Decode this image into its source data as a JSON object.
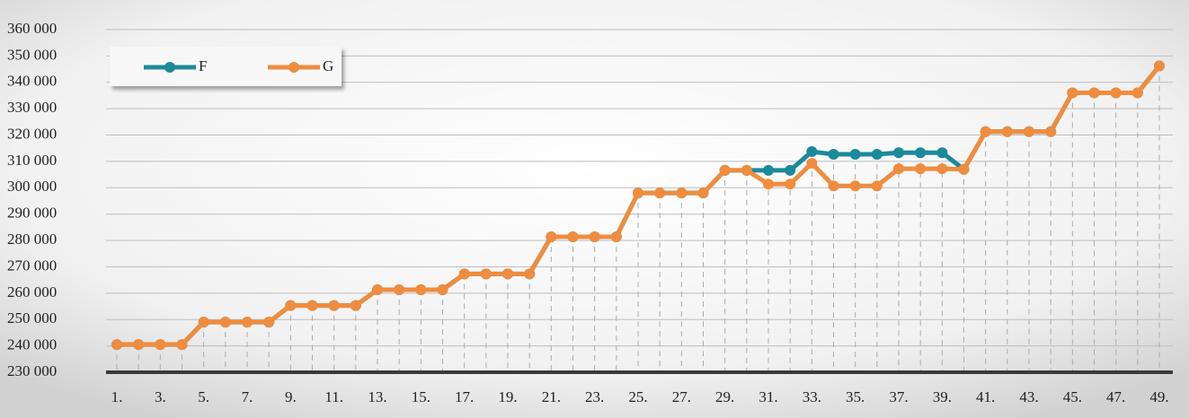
{
  "chart_data": {
    "type": "line",
    "categories": [
      "1.",
      null,
      "3.",
      null,
      "5.",
      null,
      "7.",
      null,
      "9.",
      null,
      "11.",
      null,
      "13.",
      null,
      "15.",
      null,
      "17.",
      null,
      "19.",
      null,
      "21.",
      null,
      "23.",
      null,
      "25.",
      null,
      "27.",
      null,
      "29.",
      null,
      "31.",
      null,
      "33.",
      null,
      "35.",
      null,
      "37.",
      null,
      "39.",
      null,
      "41.",
      null,
      "43.",
      null,
      "45.",
      null,
      "47.",
      null,
      "49."
    ],
    "series": [
      {
        "name": "F",
        "color": "#1b8a9b",
        "values": [
          240500,
          240500,
          240500,
          240500,
          249000,
          249000,
          249000,
          249000,
          255300,
          255300,
          255300,
          255300,
          261300,
          261300,
          261300,
          261300,
          267300,
          267300,
          267300,
          267300,
          281400,
          281400,
          281400,
          281400,
          298000,
          298000,
          298000,
          298000,
          306600,
          306600,
          306600,
          306600,
          313700,
          312700,
          312700,
          312700,
          313300,
          313300,
          313300,
          307000,
          321300,
          321300,
          321300,
          321300,
          336000,
          336000,
          336000,
          336000,
          346200
        ]
      },
      {
        "name": "G",
        "color": "#f08c3e",
        "values": [
          240500,
          240500,
          240500,
          240500,
          249000,
          249000,
          249000,
          249000,
          255300,
          255300,
          255300,
          255300,
          261300,
          261300,
          261300,
          261300,
          267300,
          267300,
          267300,
          267300,
          281400,
          281400,
          281400,
          281400,
          298000,
          298000,
          298000,
          298000,
          306600,
          306600,
          301400,
          301400,
          309300,
          300700,
          300700,
          300700,
          307200,
          307200,
          307200,
          307000,
          321300,
          321300,
          321300,
          321300,
          336000,
          336000,
          336000,
          336000,
          346200
        ]
      }
    ],
    "ylim": [
      230000,
      360000
    ],
    "yticks": [
      {
        "value": 230000,
        "label": "230 000"
      },
      {
        "value": 240000,
        "label": "240 000"
      },
      {
        "value": 250000,
        "label": "250 000"
      },
      {
        "value": 260000,
        "label": "260 000"
      },
      {
        "value": 270000,
        "label": "270 000"
      },
      {
        "value": 280000,
        "label": "280 000"
      },
      {
        "value": 290000,
        "label": "290 000"
      },
      {
        "value": 300000,
        "label": "300 000"
      },
      {
        "value": 310000,
        "label": "310 000"
      },
      {
        "value": 320000,
        "label": "320 000"
      },
      {
        "value": 330000,
        "label": "330 000"
      },
      {
        "value": 340000,
        "label": "340 000"
      },
      {
        "value": 350000,
        "label": "350 000"
      },
      {
        "value": 360000,
        "label": "360 000"
      }
    ],
    "grid": true,
    "legend": "upper-left"
  }
}
